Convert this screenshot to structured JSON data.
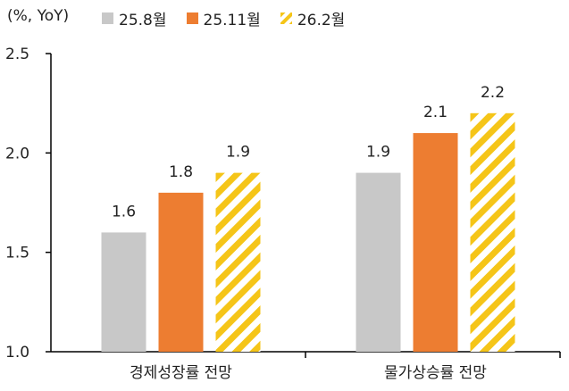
{
  "chart_data": {
    "type": "bar",
    "unit_label": "(%, YoY)",
    "categories": [
      "경제성장률 전망",
      "물가상승률 전망"
    ],
    "series": [
      {
        "name": "25.8월",
        "values": [
          1.6,
          1.9
        ],
        "color": "#c8c8c8",
        "pattern": "solid"
      },
      {
        "name": "25.11월",
        "values": [
          1.8,
          2.1
        ],
        "color": "#ed7d31",
        "pattern": "solid"
      },
      {
        "name": "26.2월",
        "values": [
          1.9,
          2.2
        ],
        "color": "#f5c518",
        "pattern": "diagonal-stripes"
      }
    ],
    "data_labels": [
      [
        "1.6",
        "1.8",
        "1.9"
      ],
      [
        "1.9",
        "2.1",
        "2.2"
      ]
    ],
    "y_ticks": [
      "1.0",
      "1.5",
      "2.0",
      "2.5"
    ],
    "ylim": [
      1.0,
      2.5
    ],
    "grid": false,
    "legend_position": "top"
  }
}
